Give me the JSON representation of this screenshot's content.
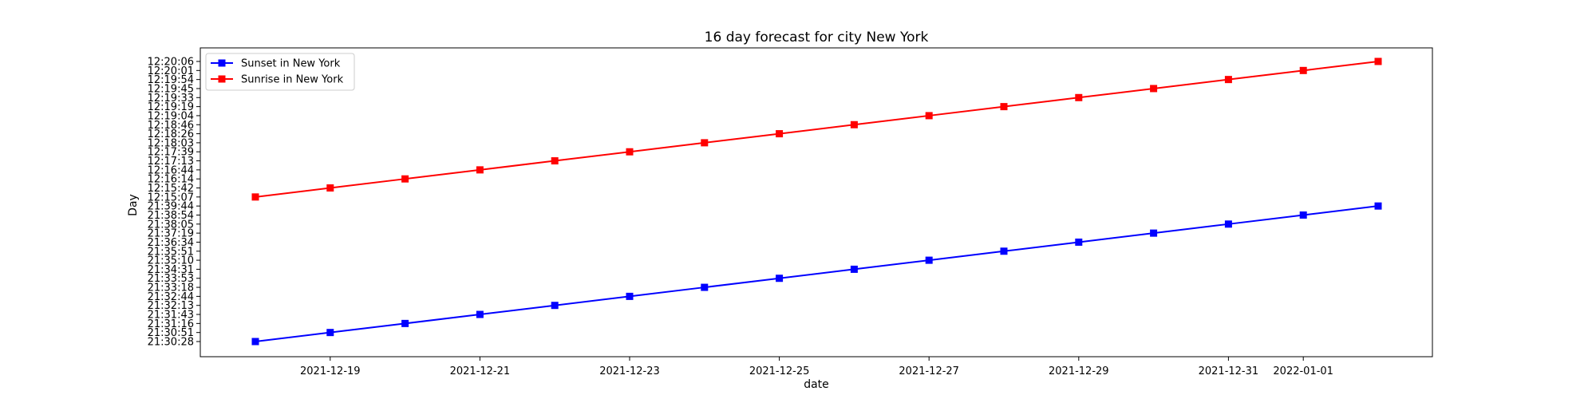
{
  "chart_data": {
    "type": "line",
    "title": "16 day forecast for city New York",
    "xlabel": "date",
    "ylabel": "Day",
    "x": [
      "2021-12-18",
      "2021-12-19",
      "2021-12-20",
      "2021-12-21",
      "2021-12-22",
      "2021-12-23",
      "2021-12-24",
      "2021-12-25",
      "2021-12-26",
      "2021-12-27",
      "2021-12-28",
      "2021-12-29",
      "2021-12-30",
      "2021-12-31",
      "2022-01-01",
      "2022-01-02"
    ],
    "x_tick_labels": [
      "2021-12-19",
      "2021-12-21",
      "2021-12-23",
      "2021-12-25",
      "2021-12-27",
      "2021-12-29",
      "2021-12-31",
      "2022-01-01"
    ],
    "y_tick_labels": [
      "21:30:28",
      "21:30:51",
      "21:31:16",
      "21:31:43",
      "21:32:13",
      "21:32:44",
      "21:33:18",
      "21:33:53",
      "21:34:31",
      "21:35:10",
      "21:35:51",
      "21:36:34",
      "21:37:19",
      "21:38:05",
      "21:38:54",
      "21:39:44",
      "12:15:07",
      "12:15:42",
      "12:16:14",
      "12:16:44",
      "12:17:13",
      "12:17:39",
      "12:18:03",
      "12:18:26",
      "12:18:46",
      "12:19:04",
      "12:19:19",
      "12:19:33",
      "12:19:45",
      "12:19:54",
      "12:20:01",
      "12:20:06"
    ],
    "series": [
      {
        "name": "Sunset in New York",
        "color": "#0000ff",
        "marker": "square",
        "values": [
          "21:30:28",
          "21:30:51",
          "21:31:16",
          "21:31:43",
          "21:32:13",
          "21:32:44",
          "21:33:18",
          "21:33:53",
          "21:34:31",
          "21:35:10",
          "21:35:51",
          "21:36:34",
          "21:37:19",
          "21:38:05",
          "21:38:54",
          "21:39:44"
        ]
      },
      {
        "name": "Sunrise in New York",
        "color": "#ff0000",
        "marker": "square",
        "values": [
          "12:15:07",
          "12:15:42",
          "12:16:14",
          "12:16:44",
          "12:17:13",
          "12:17:39",
          "12:18:03",
          "12:18:26",
          "12:18:46",
          "12:19:04",
          "12:19:19",
          "12:19:33",
          "12:19:45",
          "12:19:54",
          "12:20:01",
          "12:20:06"
        ]
      }
    ],
    "legend": "top-left",
    "grid": false
  }
}
